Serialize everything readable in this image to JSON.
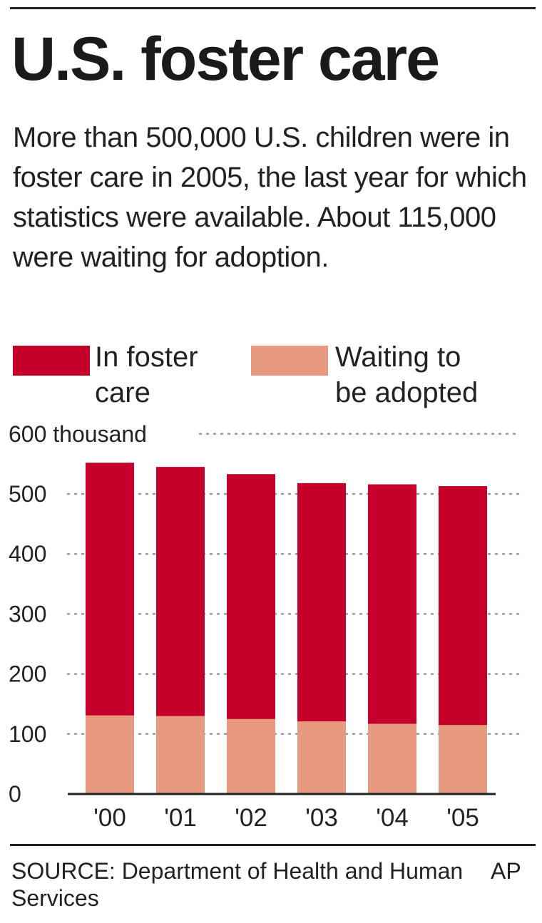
{
  "title": "U.S. foster care",
  "subtitle": "More than 500,000 U.S. children were in foster care in 2005, the last year for which statistics were available. About 115,000 were waiting for adoption.",
  "legend": {
    "foster_label": "In foster\ncare",
    "adopt_label": "Waiting to\nbe adopted"
  },
  "colors": {
    "foster": "#c4002b",
    "adopt": "#e89a80",
    "grid": "#999999",
    "axis": "#222222"
  },
  "chart_data": {
    "type": "bar",
    "stacked": false,
    "overlap": true,
    "categories": [
      "'00",
      "'01",
      "'02",
      "'03",
      "'04",
      "'05"
    ],
    "series": [
      {
        "name": "In foster care",
        "values": [
          552,
          545,
          533,
          518,
          516,
          513
        ]
      },
      {
        "name": "Waiting to be adopted",
        "values": [
          131,
          130,
          125,
          121,
          117,
          115
        ]
      }
    ],
    "yticks": [
      0,
      100,
      200,
      300,
      400,
      500,
      600
    ],
    "ytick_labels": [
      "0",
      "100",
      "200",
      "300",
      "400",
      "500",
      "600 thousand"
    ],
    "ylim": [
      0,
      600
    ],
    "grid": true,
    "grid_style": "dotted",
    "legend_position": "top"
  },
  "footer": {
    "source": "SOURCE: Department of Health and Human Services",
    "credit": "AP"
  }
}
